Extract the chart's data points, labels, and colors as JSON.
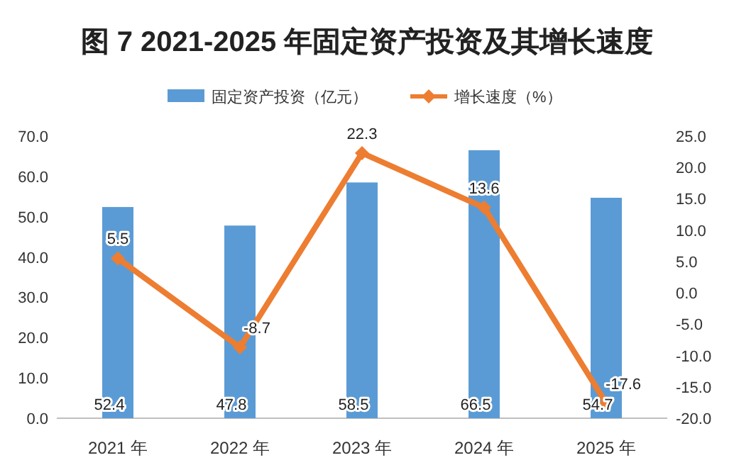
{
  "chart_data": {
    "type": "bar",
    "title": "图 7  2021-2025 年固定资产投资及其增长速度",
    "categories": [
      "2021 年",
      "2022 年",
      "2023 年",
      "2024 年",
      "2025 年"
    ],
    "series": [
      {
        "name": "固定资产投资（亿元）",
        "color": "#5b9bd5",
        "values": [
          52.4,
          47.8,
          58.5,
          66.5,
          54.7
        ]
      },
      {
        "name": "增长速度（%）",
        "type": "line",
        "axis": "y2",
        "color": "#ed7d31",
        "marker": "diamond",
        "values": [
          5.5,
          -8.7,
          22.3,
          13.6,
          -17.6
        ]
      }
    ],
    "ylim": [
      0,
      70
    ],
    "yticks": [
      {
        "value": 0,
        "label": "0.0"
      },
      {
        "value": 10,
        "label": "10.0"
      },
      {
        "value": 20,
        "label": "20.0"
      },
      {
        "value": 30,
        "label": "30.0"
      },
      {
        "value": 40,
        "label": "40.0"
      },
      {
        "value": 50,
        "label": "50.0"
      },
      {
        "value": 60,
        "label": "60.0"
      },
      {
        "value": 70,
        "label": "70.0"
      }
    ],
    "y2lim": [
      -20,
      25
    ],
    "y2ticks": [
      {
        "value": -20,
        "label": "-20.0"
      },
      {
        "value": -15,
        "label": "-15.0"
      },
      {
        "value": -10,
        "label": "-10.0"
      },
      {
        "value": -5,
        "label": "-5.0"
      },
      {
        "value": 0,
        "label": "0.0"
      },
      {
        "value": 5,
        "label": "5.0"
      },
      {
        "value": 10,
        "label": "10.0"
      },
      {
        "value": 15,
        "label": "15.0"
      },
      {
        "value": 20,
        "label": "20.0"
      },
      {
        "value": 25,
        "label": "25.0"
      }
    ],
    "legend": "top",
    "data_labels": true
  }
}
